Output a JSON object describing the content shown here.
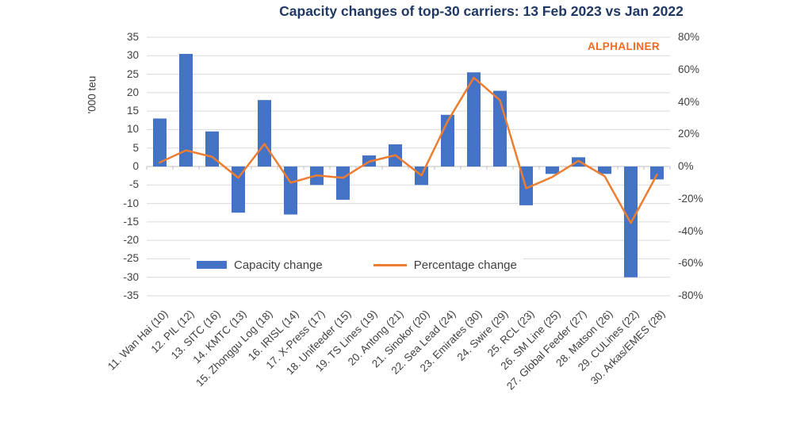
{
  "title": "Capacity changes of top-30 carriers: 13 Feb 2023 vs Jan 2022",
  "watermark": "ALPHALINER",
  "colors": {
    "bar": "#4472C4",
    "line": "#ED7D31",
    "title_text": "#1F3864",
    "watermark_text": "#F26A21",
    "axis_text": "#404040",
    "gridline": "#D9D9D9",
    "axis_line": "#BFBFBF"
  },
  "chart_data": {
    "type": "bar",
    "subtype": "bar-line-combo",
    "title": "Capacity changes of top-30 carriers: 13 Feb 2023 vs Jan 2022",
    "categories": [
      "11. Wan Hai (10)",
      "12. PIL (12)",
      "13. SITC (16)",
      "14. KMTC (13)",
      "15. Zhonggu Log (18)",
      "16. IRISL (14)",
      "17. X-Press (17)",
      "18. Unifeeder (15)",
      "19. TS Lines (19)",
      "20. Antong (21)",
      "21. Sinokor (20)",
      "22. Sea Lead (24)",
      "23. Emirates (30)",
      "24. Swire (29)",
      "25. RCL (23)",
      "26. SM Line (25)",
      "27. Global Feeder (27)",
      "28. Matson (26)",
      "29. CULines (22)",
      "30. Arkas/EMES (28)"
    ],
    "series": [
      {
        "name": "Capacity change",
        "type": "bar",
        "axis": "left",
        "unit": "'000 teu",
        "values": [
          13,
          30.5,
          9.5,
          -12.5,
          18,
          -13,
          -5,
          -9,
          3,
          6,
          -5,
          14,
          25.5,
          20.5,
          -10.5,
          -2,
          2.5,
          -2,
          -30,
          -3.5
        ]
      },
      {
        "name": "Percentage change",
        "type": "line",
        "axis": "right",
        "unit": "%",
        "values": [
          2.5,
          10,
          6,
          -7,
          14,
          -10,
          -5.5,
          -7,
          3,
          7,
          -5.5,
          28,
          55,
          41,
          -13.5,
          -6.5,
          3.5,
          -6,
          -35,
          -5
        ]
      }
    ],
    "left_axis": {
      "label": "'000 teu",
      "min": -35,
      "max": 35,
      "step": 5
    },
    "right_axis": {
      "min": -80,
      "max": 80,
      "step": 20,
      "suffix": "%"
    },
    "grid": true,
    "legend_position": "bottom-center-inside"
  }
}
